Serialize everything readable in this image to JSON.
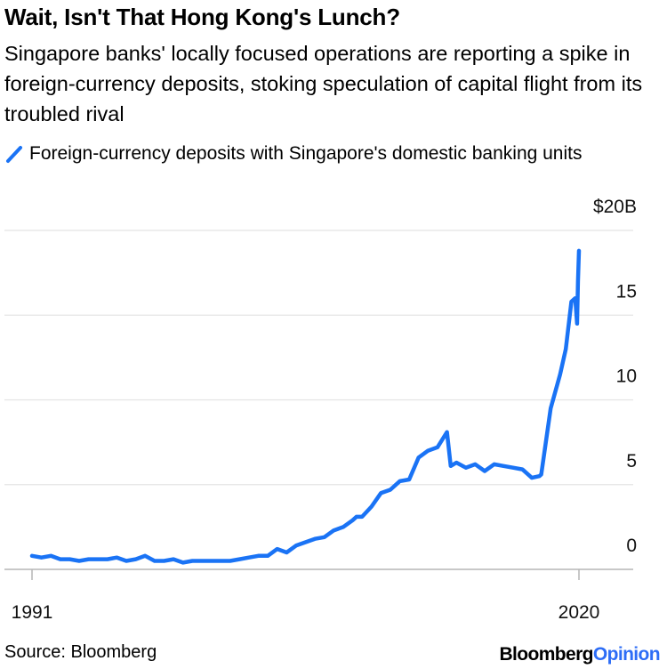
{
  "title": "Wait, Isn't That Hong Kong's Lunch?",
  "subtitle": "Singapore banks' locally focused operations are reporting a spike in foreign-currency deposits, stoking speculation of capital flight from its troubled rival",
  "source": "Source: Bloomberg",
  "brand": {
    "part1": "Bloomberg",
    "part2": "Opinion",
    "accent_color": "#2d6df6"
  },
  "chart_data": {
    "type": "line",
    "x_tick_labels": [
      "1991",
      "2020"
    ],
    "y_tick_labels": [
      "$20B",
      "15",
      "10",
      "5",
      "0"
    ],
    "ylim": [
      0,
      20
    ],
    "xlim": [
      1991.0,
      2020.0
    ],
    "grid": true,
    "legend_position": "top-left",
    "series": [
      {
        "name": "Foreign-currency deposits with Singapore's domestic banking units",
        "color": "#1a73f5",
        "x": [
          1991.0,
          1991.5,
          1992.0,
          1992.5,
          1993.0,
          1993.5,
          1994.0,
          1994.5,
          1995.0,
          1995.5,
          1996.0,
          1996.5,
          1997.0,
          1997.5,
          1998.0,
          1998.5,
          1999.0,
          1999.5,
          2000.0,
          2000.5,
          2001.0,
          2001.5,
          2002.0,
          2002.5,
          2003.0,
          2003.5,
          2004.0,
          2004.5,
          2005.0,
          2005.5,
          2006.0,
          2006.5,
          2007.0,
          2007.5,
          2008.0,
          2008.2,
          2008.5,
          2009.0,
          2009.5,
          2010.0,
          2010.5,
          2011.0,
          2011.5,
          2012.0,
          2012.5,
          2013.0,
          2013.2,
          2013.5,
          2014.0,
          2014.5,
          2015.0,
          2015.5,
          2016.0,
          2016.5,
          2017.0,
          2017.5,
          2017.9,
          2018.0,
          2018.5,
          2019.0,
          2019.3,
          2019.6,
          2019.8,
          2019.9,
          2019.95,
          2020.0
        ],
        "values": [
          0.8,
          0.7,
          0.8,
          0.6,
          0.6,
          0.5,
          0.6,
          0.6,
          0.6,
          0.7,
          0.5,
          0.6,
          0.8,
          0.5,
          0.5,
          0.6,
          0.4,
          0.5,
          0.5,
          0.5,
          0.5,
          0.5,
          0.6,
          0.7,
          0.8,
          0.8,
          1.2,
          1.0,
          1.4,
          1.6,
          1.8,
          1.9,
          2.3,
          2.5,
          2.9,
          3.1,
          3.1,
          3.7,
          4.5,
          4.7,
          5.2,
          5.3,
          6.6,
          7.0,
          7.2,
          8.1,
          6.1,
          6.3,
          6.0,
          6.2,
          5.8,
          6.2,
          6.1,
          6.0,
          5.9,
          5.4,
          5.5,
          5.6,
          9.5,
          11.5,
          13.0,
          15.8,
          16.0,
          14.5,
          17.0,
          18.8
        ]
      }
    ]
  }
}
